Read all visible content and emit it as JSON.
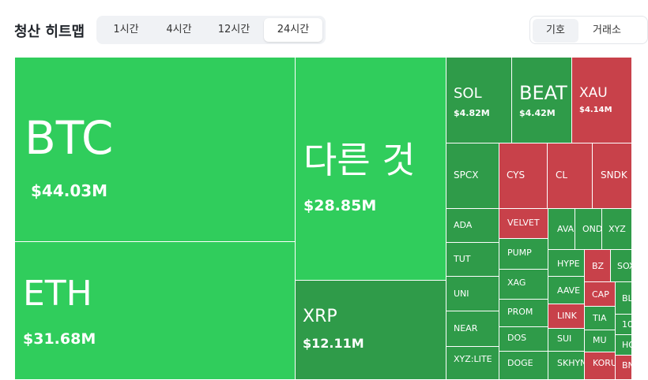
{
  "header": {
    "title": "청산 히트맵",
    "timeframes": [
      "1시간",
      "4시간",
      "12시간",
      "24시간"
    ],
    "active_timeframe": "24시간",
    "view_modes": [
      "기호",
      "거래소"
    ],
    "active_view": "기호"
  },
  "colors": {
    "strong_green": "#30cd5c",
    "green": "#2f9b49",
    "red": "#c8414a"
  },
  "tiles": [
    {
      "symbol": "BTC",
      "value": "$44.03M"
    },
    {
      "symbol": "ETH",
      "value": "$31.68M"
    },
    {
      "symbol": "다른 것",
      "value": "$28.85M"
    },
    {
      "symbol": "XRP",
      "value": "$12.11M"
    },
    {
      "symbol": "SOL",
      "value": "$4.82M"
    },
    {
      "symbol": "BEAT",
      "value": "$4.42M"
    },
    {
      "symbol": "XAU",
      "value": "$4.14M"
    },
    {
      "symbol": "SPCX"
    },
    {
      "symbol": "CYS"
    },
    {
      "symbol": "CL"
    },
    {
      "symbol": "SNDK"
    },
    {
      "symbol": "ADA"
    },
    {
      "symbol": "VELVET"
    },
    {
      "symbol": "AVA"
    },
    {
      "symbol": "OND"
    },
    {
      "symbol": "XYZ"
    },
    {
      "symbol": "TUT"
    },
    {
      "symbol": "PUMP"
    },
    {
      "symbol": "HYPE"
    },
    {
      "symbol": "BZ"
    },
    {
      "symbol": "SOX"
    },
    {
      "symbol": "UNI"
    },
    {
      "symbol": "XAG"
    },
    {
      "symbol": "AAVE"
    },
    {
      "symbol": "CAP"
    },
    {
      "symbol": "BL"
    },
    {
      "symbol": "PROM"
    },
    {
      "symbol": "LINK"
    },
    {
      "symbol": "TIA"
    },
    {
      "symbol": "NEAR"
    },
    {
      "symbol": "10"
    },
    {
      "symbol": "DOS"
    },
    {
      "symbol": "SUI"
    },
    {
      "symbol": "MU"
    },
    {
      "symbol": "HO"
    },
    {
      "symbol": "XYZ:LITE"
    },
    {
      "symbol": "DOGE"
    },
    {
      "symbol": "SKHYN"
    },
    {
      "symbol": "KORU"
    },
    {
      "symbol": "BN"
    }
  ]
}
